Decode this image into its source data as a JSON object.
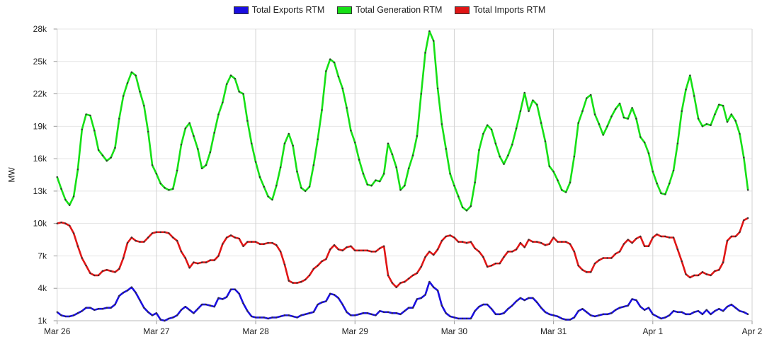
{
  "chart_data": {
    "type": "line",
    "title": "",
    "xlabel": "",
    "ylabel": "MW",
    "x_unit": "hours since Mar 26 00:00",
    "xlim": [
      0,
      168
    ],
    "ylim": [
      1000,
      28000
    ],
    "y_ticks": [
      1000,
      4000,
      7000,
      10000,
      13000,
      16000,
      19000,
      22000,
      25000,
      28000
    ],
    "y_tick_labels": [
      "1k",
      "4k",
      "7k",
      "10k",
      "13k",
      "16k",
      "19k",
      "22k",
      "25k",
      "28k"
    ],
    "x_ticks": [
      0,
      24,
      48,
      72,
      96,
      120,
      144,
      168
    ],
    "x_tick_labels": [
      "Mar 26",
      "Mar 27",
      "Mar 28",
      "Mar 29",
      "Mar 30",
      "Mar 31",
      "Apr 1",
      "Apr 2"
    ],
    "grid": true,
    "legend_position": "top-center",
    "series": [
      {
        "name": "Total Exports RTM",
        "color": "#1a0ee0",
        "values_k": [
          1.8,
          1.5,
          1.4,
          1.4,
          1.5,
          1.7,
          1.9,
          2.2,
          2.2,
          2.0,
          2.1,
          2.1,
          2.2,
          2.2,
          2.5,
          3.3,
          3.6,
          3.8,
          4.1,
          3.6,
          2.9,
          2.2,
          1.8,
          1.5,
          1.7,
          1.1,
          1.0,
          1.2,
          1.3,
          1.5,
          2.0,
          2.3,
          2.0,
          1.7,
          2.1,
          2.5,
          2.5,
          2.4,
          2.3,
          3.1,
          3.0,
          3.2,
          3.9,
          3.9,
          3.5,
          2.6,
          1.9,
          1.4,
          1.3,
          1.3,
          1.3,
          1.2,
          1.3,
          1.3,
          1.4,
          1.5,
          1.5,
          1.4,
          1.3,
          1.5,
          1.6,
          1.7,
          1.8,
          2.5,
          2.7,
          2.8,
          3.5,
          3.4,
          3.1,
          2.5,
          1.8,
          1.5,
          1.5,
          1.6,
          1.7,
          1.7,
          1.6,
          1.5,
          1.9,
          1.8,
          1.8,
          1.7,
          1.7,
          1.6,
          1.9,
          2.2,
          2.2,
          3.0,
          3.1,
          3.4,
          4.6,
          4.1,
          3.8,
          2.4,
          1.7,
          1.4,
          1.3,
          1.2,
          1.2,
          1.2,
          1.2,
          1.9,
          2.3,
          2.5,
          2.5,
          2.1,
          1.6,
          1.6,
          1.7,
          2.1,
          2.4,
          2.8,
          3.1,
          2.9,
          3.1,
          3.1,
          2.7,
          2.2,
          1.8,
          1.6,
          1.5,
          1.4,
          1.2,
          1.1,
          1.1,
          1.3,
          1.9,
          2.1,
          1.8,
          1.5,
          1.4,
          1.5,
          1.6,
          1.6,
          1.7,
          2.0,
          2.2,
          2.3,
          2.4,
          3.0,
          2.9,
          2.3,
          2.0,
          2.2,
          1.6,
          1.4,
          1.2,
          1.3,
          1.5,
          1.9,
          1.8,
          1.8,
          1.6,
          1.6,
          1.8,
          1.9,
          1.6,
          2.0,
          1.6,
          1.9,
          2.1,
          1.9,
          2.3,
          2.5,
          2.2,
          1.9,
          1.8,
          1.6
        ]
      },
      {
        "name": "Total Generation RTM",
        "color": "#16e016",
        "values_k": [
          14.3,
          13.2,
          12.2,
          11.7,
          12.5,
          15.0,
          18.7,
          20.1,
          20.0,
          18.6,
          16.8,
          16.3,
          15.8,
          16.1,
          17.0,
          19.7,
          21.8,
          23.0,
          24.0,
          23.7,
          22.2,
          20.9,
          18.5,
          15.4,
          14.6,
          13.7,
          13.3,
          13.1,
          13.2,
          14.9,
          17.3,
          18.8,
          19.3,
          18.1,
          16.9,
          15.1,
          15.4,
          16.6,
          18.4,
          20.1,
          21.2,
          22.9,
          23.7,
          23.4,
          22.2,
          22.0,
          19.5,
          17.4,
          15.7,
          14.3,
          13.4,
          12.5,
          12.2,
          13.5,
          15.2,
          17.4,
          18.3,
          17.2,
          14.8,
          13.3,
          13.0,
          13.4,
          15.4,
          17.8,
          20.5,
          24.1,
          25.2,
          24.9,
          23.6,
          22.5,
          20.7,
          18.6,
          17.5,
          15.9,
          14.6,
          13.6,
          13.5,
          14.0,
          13.9,
          14.6,
          17.4,
          16.4,
          15.2,
          13.1,
          13.5,
          15.1,
          16.3,
          18.1,
          22.0,
          25.8,
          27.8,
          26.9,
          22.5,
          19.2,
          16.9,
          14.6,
          13.5,
          12.5,
          11.5,
          11.2,
          11.6,
          13.8,
          16.8,
          18.3,
          19.1,
          18.7,
          17.4,
          16.2,
          15.5,
          16.3,
          17.3,
          18.8,
          20.4,
          22.1,
          20.4,
          21.4,
          21.0,
          19.3,
          17.6,
          15.3,
          14.8,
          14.0,
          13.1,
          12.9,
          13.8,
          16.2,
          19.3,
          20.4,
          21.6,
          21.9,
          20.1,
          19.2,
          18.2,
          19.0,
          19.9,
          20.6,
          21.1,
          19.8,
          19.7,
          20.7,
          19.7,
          18.0,
          17.5,
          16.5,
          14.8,
          13.7,
          12.8,
          12.7,
          13.7,
          14.9,
          17.4,
          20.4,
          22.4,
          23.7,
          21.8,
          19.7,
          19.0,
          19.2,
          19.1,
          20.1,
          21.0,
          20.9,
          19.4,
          20.1,
          19.5,
          18.3,
          16.1,
          13.1
        ]
      },
      {
        "name": "Total Imports RTM",
        "color": "#e01616",
        "values_k": [
          10.0,
          10.1,
          10.0,
          9.8,
          9.1,
          7.9,
          6.8,
          6.1,
          5.4,
          5.2,
          5.2,
          5.6,
          5.7,
          5.6,
          5.5,
          5.8,
          6.8,
          8.2,
          8.7,
          8.4,
          8.3,
          8.3,
          8.7,
          9.1,
          9.2,
          9.2,
          9.2,
          9.1,
          8.7,
          8.4,
          7.4,
          6.8,
          5.9,
          6.4,
          6.3,
          6.4,
          6.4,
          6.6,
          6.6,
          7.0,
          8.1,
          8.7,
          8.9,
          8.7,
          8.6,
          7.9,
          8.3,
          8.3,
          8.3,
          8.1,
          8.1,
          8.2,
          8.2,
          8.0,
          7.4,
          6.2,
          4.7,
          4.5,
          4.5,
          4.6,
          4.8,
          5.2,
          5.8,
          6.1,
          6.5,
          6.7,
          7.6,
          8.0,
          7.6,
          7.5,
          7.8,
          7.9,
          7.5,
          7.5,
          7.5,
          7.5,
          7.4,
          7.4,
          7.7,
          7.9,
          5.2,
          4.5,
          4.1,
          4.5,
          4.6,
          4.9,
          5.2,
          5.4,
          6.0,
          6.9,
          7.4,
          7.1,
          7.6,
          8.4,
          8.8,
          8.9,
          8.7,
          8.3,
          8.3,
          8.2,
          8.3,
          7.7,
          7.4,
          6.9,
          6.0,
          6.1,
          6.3,
          6.3,
          6.9,
          7.4,
          7.4,
          7.6,
          8.2,
          7.8,
          8.5,
          8.3,
          8.3,
          8.2,
          8.0,
          8.1,
          8.7,
          8.3,
          8.3,
          8.3,
          8.1,
          7.4,
          6.1,
          5.7,
          5.5,
          5.5,
          6.3,
          6.6,
          6.8,
          6.8,
          6.8,
          7.2,
          7.4,
          8.1,
          8.5,
          8.2,
          8.6,
          8.8,
          7.9,
          7.9,
          8.7,
          9.0,
          8.8,
          8.8,
          8.7,
          8.7,
          7.6,
          6.5,
          5.3,
          5.0,
          5.2,
          5.2,
          5.5,
          5.3,
          5.2,
          5.6,
          5.7,
          6.4,
          8.4,
          8.8,
          8.8,
          9.2,
          10.3,
          10.5
        ]
      }
    ]
  }
}
